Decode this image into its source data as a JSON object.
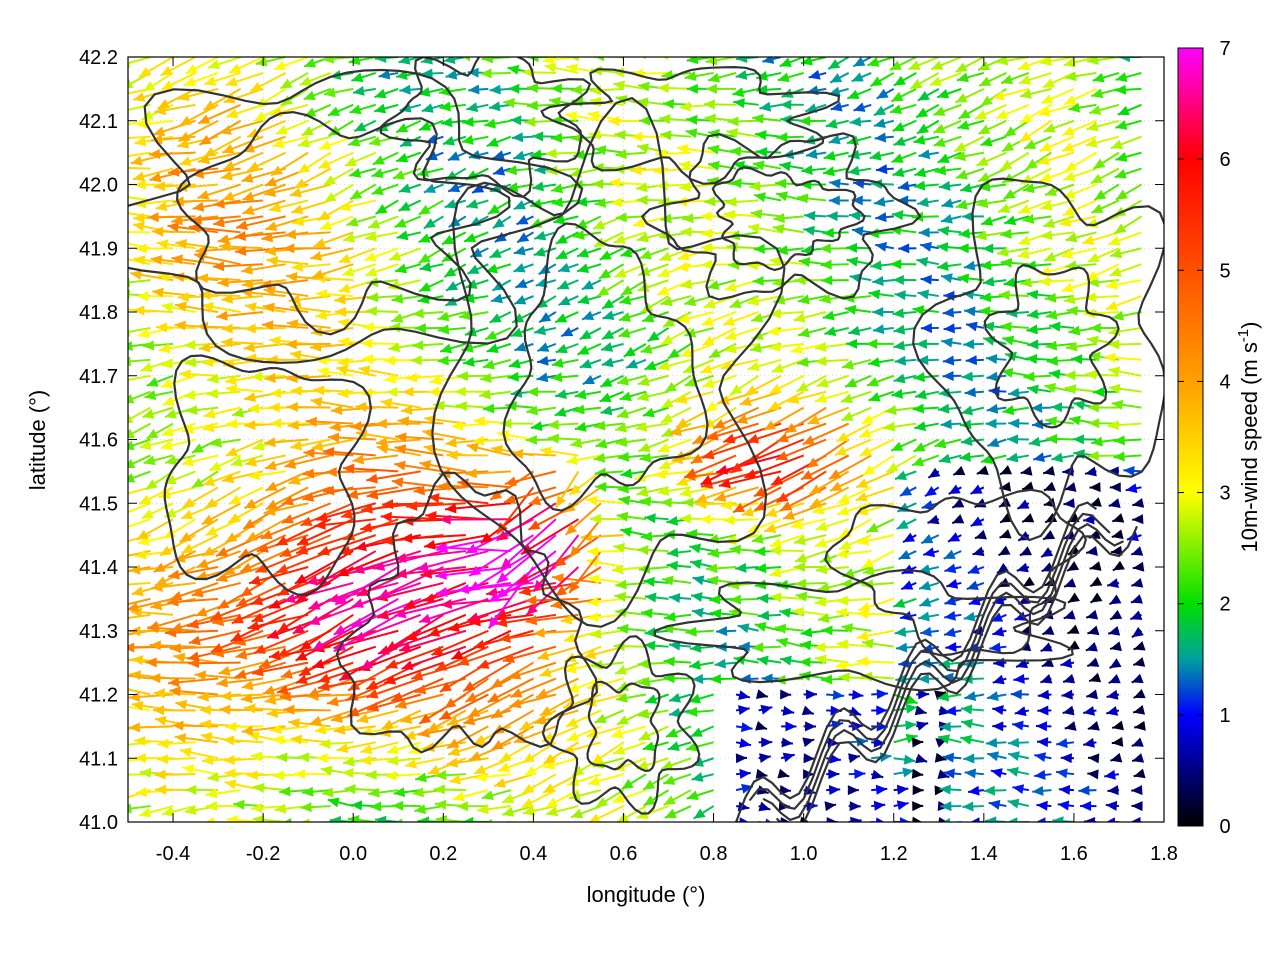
{
  "chart_data": {
    "type": "vector-field-contour",
    "xlabel": "longitude (°)",
    "ylabel": "latitude (°)",
    "colorbar_label": {
      "main": "10m-wind speed (m s",
      "exponent": "-1",
      "close": ")"
    },
    "xlim": [
      -0.5,
      1.8
    ],
    "ylim": [
      41.0,
      42.2
    ],
    "x_ticks": [
      "-0.4",
      "-0.2",
      "0.0",
      "0.2",
      "0.4",
      "0.6",
      "0.8",
      "1.0",
      "1.2",
      "1.4",
      "1.6",
      "1.8"
    ],
    "x_tick_values": [
      -0.4,
      -0.2,
      0.0,
      0.2,
      0.4,
      0.6,
      0.8,
      1.0,
      1.2,
      1.4,
      1.6,
      1.8
    ],
    "y_ticks": [
      "41.0",
      "41.1",
      "41.2",
      "41.3",
      "41.4",
      "41.5",
      "41.6",
      "41.7",
      "41.8",
      "41.9",
      "42.0",
      "42.1",
      "42.2"
    ],
    "y_tick_values": [
      41.0,
      41.1,
      41.2,
      41.3,
      41.4,
      41.5,
      41.6,
      41.7,
      41.8,
      41.9,
      42.0,
      42.1,
      42.2
    ],
    "colorbar_range": [
      0,
      7
    ],
    "colorbar_ticks": [
      "0",
      "1",
      "2",
      "3",
      "4",
      "5",
      "6",
      "7"
    ],
    "colorbar_tick_values": [
      0,
      1,
      2,
      3,
      4,
      5,
      6,
      7
    ],
    "colormap_stops": [
      {
        "value": 0,
        "color": "#000000"
      },
      {
        "value": 1,
        "color": "#0000ff"
      },
      {
        "value": 1.5,
        "color": "#00a0a0"
      },
      {
        "value": 2,
        "color": "#00e000"
      },
      {
        "value": 3,
        "color": "#ffff00"
      },
      {
        "value": 4,
        "color": "#ffa000"
      },
      {
        "value": 5,
        "color": "#ff5000"
      },
      {
        "value": 6,
        "color": "#ff0000"
      },
      {
        "value": 7,
        "color": "#ff00ff"
      }
    ],
    "grid": true,
    "arrow_field": {
      "lon_start": -0.5,
      "lon_end": 1.78,
      "lon_step": 0.05,
      "lat_start": 41.0,
      "lat_end": 42.2,
      "lat_step": 0.025
    },
    "contour_color": "#333333"
  }
}
